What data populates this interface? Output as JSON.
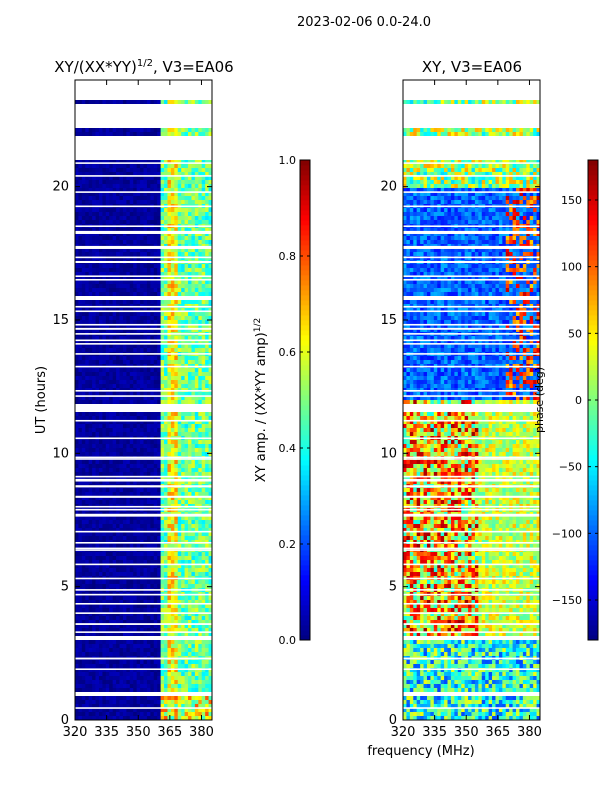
{
  "figure_title": "2023-02-06 0.0-24.0",
  "colors": {
    "cmap": [
      "#00007f",
      "#0000ff",
      "#007fff",
      "#00ffff",
      "#7fff7f",
      "#ffff00",
      "#ff7f00",
      "#ff0000",
      "#7f0000"
    ],
    "blank": "#ffffff",
    "frame": "#000000"
  },
  "chart_data": [
    {
      "type": "heatmap",
      "title_text": "XY/(XX*YY)",
      "title_sup": "1/2",
      "title_suffix": ", V3=EA06",
      "xlabel": "frequency (MHz)",
      "ylabel": "UT (hours)",
      "xlim": [
        320,
        385
      ],
      "ylim": [
        0,
        24
      ],
      "xticks": [
        320,
        335,
        350,
        365,
        380
      ],
      "yticks": [
        0,
        5,
        10,
        15,
        20
      ],
      "colorbar": {
        "label_text": "XY amp. / (XX*YY amp)",
        "label_sup": "1/2",
        "range": [
          0.0,
          1.0
        ],
        "ticks": [
          "0.0",
          "0.2",
          "0.4",
          "0.6",
          "0.8",
          "1.0"
        ],
        "tick_values": [
          0.0,
          0.2,
          0.4,
          0.6,
          0.8,
          1.0
        ]
      },
      "description": "Mostly low amplitude (~0.0-0.1) below 361 MHz; elevated 0.3-0.6 in 361-382 MHz band; data gaps near 21.5-23.2 h and scattered horizontal lines."
    },
    {
      "type": "heatmap",
      "title_text": "XY, V3=EA06",
      "xlabel": "frequency (MHz)",
      "ylabel": "",
      "xlim": [
        320,
        385
      ],
      "ylim": [
        0,
        24
      ],
      "xticks": [
        320,
        335,
        350,
        365,
        380
      ],
      "yticks": [
        0,
        5,
        10,
        15,
        20
      ],
      "colorbar": {
        "label_text": "phase (deg)",
        "range": [
          -180,
          180
        ],
        "ticks": [
          "−150",
          "−100",
          "−50",
          "0",
          "50",
          "100",
          "150"
        ],
        "tick_values": [
          -150,
          -100,
          -50,
          0,
          50,
          100,
          150
        ]
      },
      "description": "Phase mostly near -100 to -150 deg from 12-20 h; warm (+50 to +150 deg) stripes 320-355 MHz between 3 and 11.5 h; green/yellow 360-385 MHz band."
    }
  ]
}
